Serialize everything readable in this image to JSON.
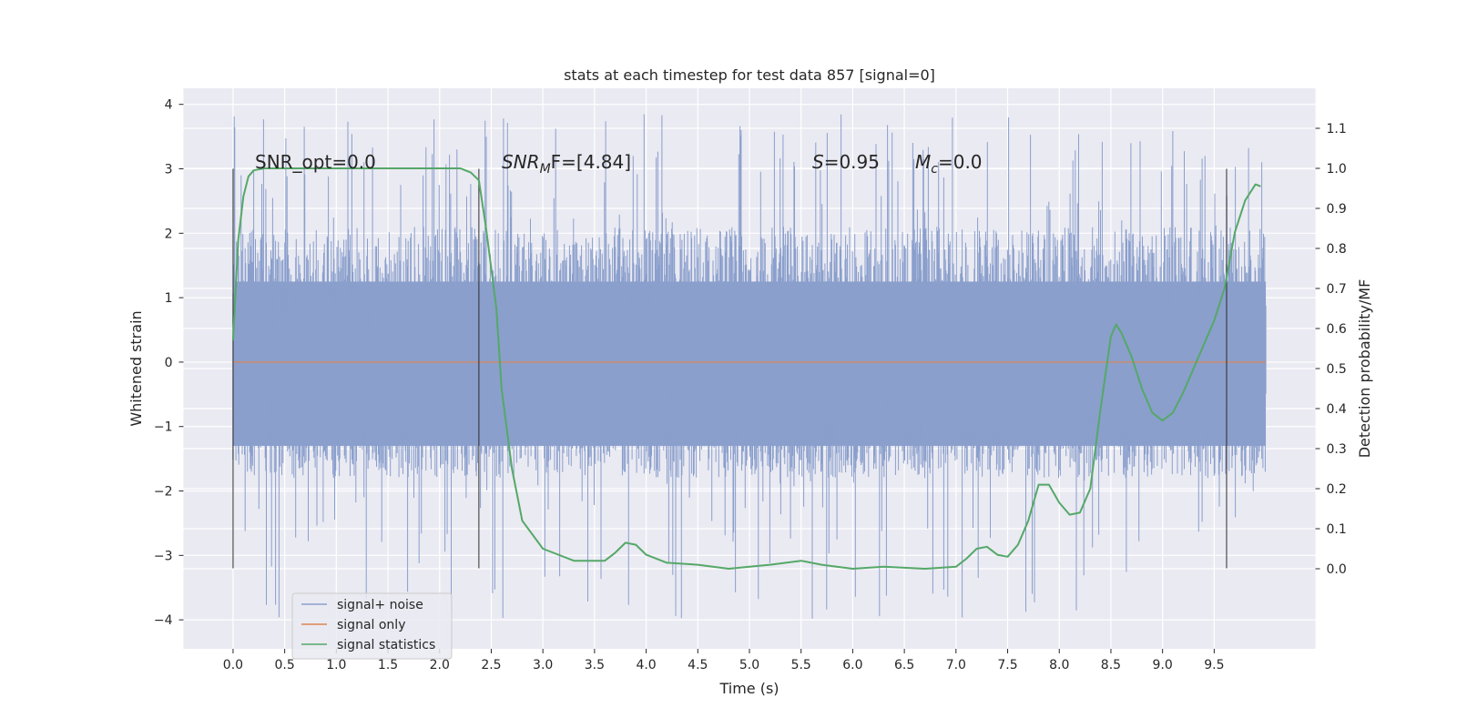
{
  "chart_data": {
    "type": "line",
    "title": "stats at each timestep for test data 857 [signal=0]",
    "xlabel": "Time (s)",
    "ylabel_left": "Whitened strain",
    "ylabel_right": "Detection probability/MF",
    "xlim": [
      -0.48,
      10.48
    ],
    "ylim_left": [
      -4.45,
      4.25
    ],
    "ylim_right": [
      -0.2,
      1.2
    ],
    "x_ticks": [
      "0.0",
      "0.5",
      "1.0",
      "1.5",
      "2.0",
      "2.5",
      "3.0",
      "3.5",
      "4.0",
      "4.5",
      "5.0",
      "5.5",
      "6.0",
      "6.5",
      "7.0",
      "7.5",
      "8.0",
      "8.5",
      "9.0",
      "9.5"
    ],
    "y_ticks_left": [
      "4",
      "3",
      "2",
      "1",
      "0",
      "−1",
      "−2",
      "−3",
      "−4"
    ],
    "y_ticks_right": [
      "1.1",
      "1.0",
      "0.9",
      "0.8",
      "0.7",
      "0.6",
      "0.5",
      "0.4",
      "0.3",
      "0.2",
      "0.1",
      "0.0"
    ],
    "grid": true,
    "legend_position": "lower-left",
    "annotations": {
      "snr_opt": "SNR_opt=0.0",
      "snr_mf_main": "SNR",
      "snr_mf_sub": "M",
      "snr_mf_rest": "F=[4.84]",
      "s_main": "S",
      "s_rest": "=0.95",
      "mc_main": "M",
      "mc_sub": "c",
      "mc_rest": "=0.0"
    },
    "vertical_markers": [
      0.0,
      2.38,
      9.62
    ],
    "vertical_marker_range": [
      -3.2,
      3.0
    ],
    "series": [
      {
        "name": "signal+ noise",
        "color": "#8a9fcc",
        "axis": "left",
        "x_range": [
          0.0,
          10.0
        ],
        "band": {
          "typical_low": -1.8,
          "typical_high": 2.1,
          "peak_low": -4.0,
          "peak_high": 3.85
        }
      },
      {
        "name": "signal only",
        "color": "#dd8452",
        "axis": "left",
        "x": [
          0.0,
          10.0
        ],
        "y": [
          0.0,
          0.0
        ]
      },
      {
        "name": "signal statistics",
        "color": "#55a868",
        "axis": "right",
        "x": [
          0.0,
          0.05,
          0.1,
          0.15,
          0.2,
          0.3,
          0.5,
          1.0,
          1.5,
          2.0,
          2.2,
          2.3,
          2.38,
          2.45,
          2.55,
          2.6,
          2.7,
          2.8,
          3.0,
          3.3,
          3.6,
          3.7,
          3.8,
          3.9,
          4.0,
          4.2,
          4.5,
          4.8,
          5.0,
          5.2,
          5.5,
          5.7,
          6.0,
          6.3,
          6.7,
          7.0,
          7.1,
          7.2,
          7.3,
          7.4,
          7.5,
          7.6,
          7.7,
          7.8,
          7.9,
          8.0,
          8.1,
          8.2,
          8.3,
          8.4,
          8.5,
          8.55,
          8.6,
          8.7,
          8.8,
          8.9,
          9.0,
          9.1,
          9.2,
          9.3,
          9.4,
          9.5,
          9.6,
          9.7,
          9.8,
          9.9,
          9.95
        ],
        "y": [
          0.57,
          0.82,
          0.93,
          0.98,
          0.995,
          1.0,
          1.0,
          1.0,
          1.0,
          1.0,
          1.0,
          0.99,
          0.97,
          0.85,
          0.65,
          0.45,
          0.25,
          0.12,
          0.05,
          0.02,
          0.02,
          0.04,
          0.065,
          0.06,
          0.035,
          0.015,
          0.01,
          0.0,
          0.005,
          0.01,
          0.02,
          0.01,
          0.0,
          0.005,
          0.0,
          0.005,
          0.025,
          0.05,
          0.055,
          0.035,
          0.03,
          0.06,
          0.12,
          0.21,
          0.21,
          0.165,
          0.135,
          0.14,
          0.2,
          0.4,
          0.58,
          0.61,
          0.59,
          0.53,
          0.45,
          0.39,
          0.37,
          0.39,
          0.44,
          0.5,
          0.56,
          0.62,
          0.7,
          0.84,
          0.92,
          0.96,
          0.955
        ]
      }
    ]
  }
}
